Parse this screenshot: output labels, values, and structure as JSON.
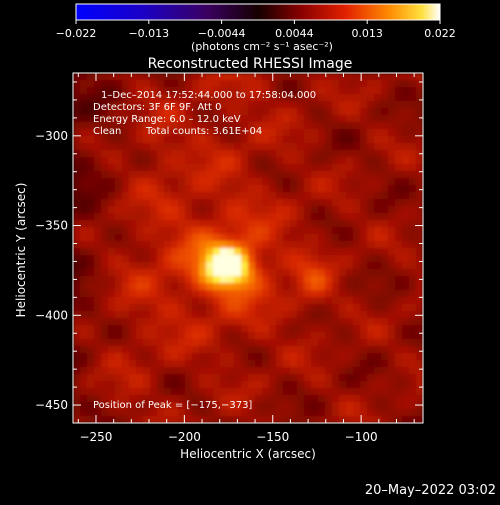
{
  "colorbar": {
    "tick_labels": [
      "−0.022",
      "−0.013",
      "−0.0044",
      "0.0044",
      "0.013",
      "0.022"
    ],
    "unit_label": "(photons cm⁻² s⁻¹ asec⁻²)",
    "range": [
      -0.022,
      0.022
    ]
  },
  "annotation": {
    "time_range": "1–Dec–2014 17:52:44.000 to 17:58:04.000",
    "detectors": "Detectors: 3F 6F 9F, Att 0",
    "energy": "Energy Range: 6.0 – 12.0 keV",
    "algorithm": "Clean",
    "counts": "Total counts: 3.61E+04",
    "peak": "Position of Peak = [−175,−373]"
  },
  "footer": {
    "timestamp": "20–May–2022 03:02"
  },
  "chart_data": {
    "type": "heatmap",
    "title": "Reconstructed RHESSI Image",
    "xlabel": "Heliocentric X (arcsec)",
    "ylabel": "Heliocentric Y (arcsec)",
    "xlim": [
      -263,
      -65
    ],
    "ylim": [
      -460,
      -265
    ],
    "xticks": [
      -250,
      -200,
      -150,
      -100
    ],
    "yticks": [
      -300,
      -350,
      -400,
      -450
    ],
    "xtick_labels": [
      "−250",
      "−200",
      "−150",
      "−100"
    ],
    "ytick_labels": [
      "−300",
      "−350",
      "−400",
      "−450"
    ],
    "peak": {
      "x": -175,
      "y": -373
    },
    "secondary_sources": [
      {
        "x": -127,
        "y": -382,
        "relative_intensity": 0.45
      },
      {
        "x": -215,
        "y": -305,
        "relative_intensity": 0.3
      }
    ]
  }
}
